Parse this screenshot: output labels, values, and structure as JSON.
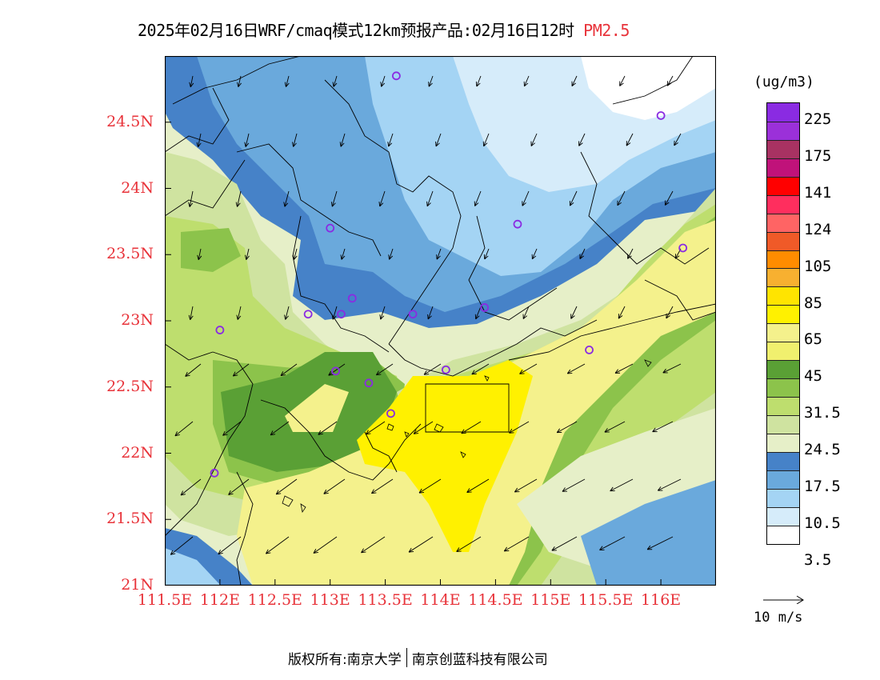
{
  "title": {
    "main": "2025年02月16日WRF/cmaq模式12km预报产品:02月16日12时",
    "pollutant": "PM2.5"
  },
  "axes": {
    "y_ticks": [
      "24.5N",
      "24N",
      "23.5N",
      "23N",
      "22.5N",
      "22N",
      "21.5N",
      "21N"
    ],
    "x_ticks": [
      "111.5E",
      "112E",
      "112.5E",
      "113E",
      "113.5E",
      "114E",
      "114.5E",
      "115E",
      "115.5E",
      "116E"
    ],
    "lat_range": [
      21,
      25
    ],
    "lon_range": [
      111.5,
      116.5
    ]
  },
  "legend": {
    "unit": "(ug/m3)",
    "labels": [
      "225",
      "175",
      "141",
      "124",
      "105",
      "85",
      "65",
      "45",
      "31.5",
      "24.5",
      "17.5",
      "10.5",
      "3.5"
    ],
    "colors": [
      "#8a2be2",
      "#9b30d9",
      "#a83262",
      "#c0127a",
      "#ff0000",
      "#ff2e5e",
      "#ff6464",
      "#f05a28",
      "#ff8c00",
      "#f7b030",
      "#ffe400",
      "#fff100",
      "#f4f18c",
      "#f0f06e",
      "#5aa035",
      "#8cc34b",
      "#bede6e",
      "#cfe3a0",
      "#e6efc8",
      "#4682c8",
      "#6aa9dc",
      "#a4d4f4",
      "#d6ecfa",
      "#ffffff"
    ]
  },
  "wind_reference": {
    "label": "10 m/s"
  },
  "footer": {
    "left": "版权所有:南京大学",
    "right": "南京创蓝科技有限公司"
  },
  "palette": {
    "axis_label": "#e8333a",
    "white": "#ffffff",
    "lightblue": "#d6ecfa",
    "skyblue": "#a4d4f4",
    "midblue": "#6aa9dc",
    "darkblue": "#4682c8",
    "cream": "#e6efc8",
    "palegreen": "#cfe3a0",
    "lightgreen": "#bede6e",
    "green": "#8cc34b",
    "darkgreen": "#5aa035",
    "paleyellow": "#f4f18c",
    "yellow": "#fff100",
    "poi": "#8a2be2",
    "boundary": "#000000"
  },
  "points_of_interest": [
    {
      "lon": 113.6,
      "lat": 24.85
    },
    {
      "lon": 116.0,
      "lat": 24.55
    },
    {
      "lon": 113.0,
      "lat": 23.7
    },
    {
      "lon": 114.7,
      "lat": 23.73
    },
    {
      "lon": 116.2,
      "lat": 23.55
    },
    {
      "lon": 112.8,
      "lat": 23.05
    },
    {
      "lon": 113.1,
      "lat": 23.05
    },
    {
      "lon": 113.2,
      "lat": 23.17
    },
    {
      "lon": 113.75,
      "lat": 23.05
    },
    {
      "lon": 114.4,
      "lat": 23.1
    },
    {
      "lon": 112.0,
      "lat": 22.93
    },
    {
      "lon": 115.35,
      "lat": 22.78
    },
    {
      "lon": 113.05,
      "lat": 22.62
    },
    {
      "lon": 113.35,
      "lat": 22.53
    },
    {
      "lon": 114.05,
      "lat": 22.63
    },
    {
      "lon": 113.55,
      "lat": 22.3
    },
    {
      "lon": 111.95,
      "lat": 21.85
    }
  ]
}
